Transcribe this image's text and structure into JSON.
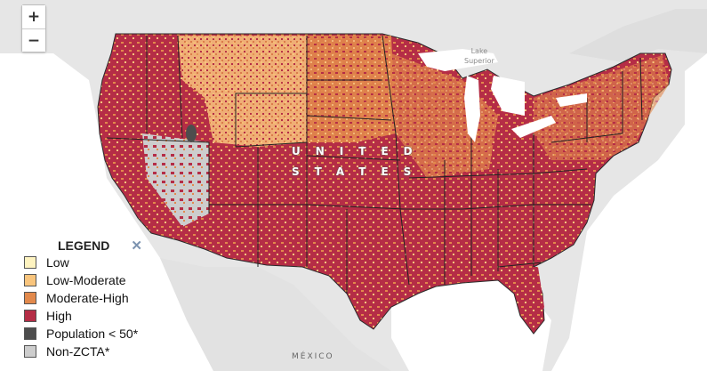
{
  "zoom": {
    "in_label": "+",
    "out_label": "−"
  },
  "labels": {
    "lake": [
      "Lake",
      "Superior"
    ],
    "country_line1": "UNITED",
    "country_line2": "STATES",
    "mexico": "MÉXICO"
  },
  "legend": {
    "title": "LEGEND",
    "close_label": "✕",
    "items": [
      {
        "label": "Low",
        "color": "#fef3c0"
      },
      {
        "label": "Low-Moderate",
        "color": "#f9c57d"
      },
      {
        "label": "Moderate-High",
        "color": "#e2894c"
      },
      {
        "label": "High",
        "color": "#b52d46"
      },
      {
        "label": "Population < 50*",
        "color": "#4d4d4d"
      },
      {
        "label": "Non-ZCTA*",
        "color": "#cdcdcd"
      }
    ]
  }
}
